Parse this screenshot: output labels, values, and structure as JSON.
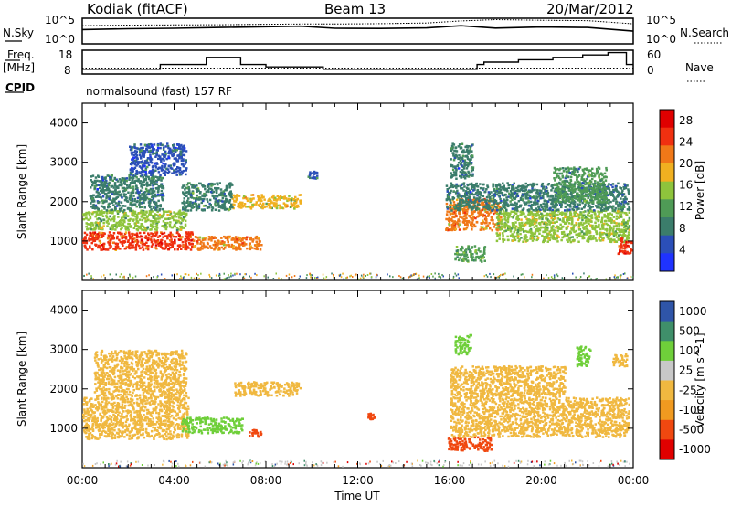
{
  "header": {
    "station": "Kodiak (fitACF)",
    "beam": "Beam 13",
    "date": "20/Mar/2012"
  },
  "top_panel": {
    "left_label": "N.Sky",
    "right_label": "N.Search",
    "left_ticks": [
      "10^5",
      "10^0"
    ],
    "right_ticks": [
      "10^5",
      "10^0"
    ]
  },
  "freq_panel": {
    "left_label_line1": "Freq.",
    "left_label_line2": "[MHz]",
    "right_label": "Nave",
    "left_ticks": [
      "18",
      "8"
    ],
    "right_ticks": [
      "60",
      "0"
    ]
  },
  "cpid": {
    "label": "CPID",
    "value": "normalsound (fast) 157 RF"
  },
  "colors": {
    "power": [
      "#1f33ff",
      "#2b4fb8",
      "#3b7d6b",
      "#4f9b56",
      "#8ec43c",
      "#f0b020",
      "#f07818",
      "#f03010",
      "#e00000"
    ],
    "velocity": [
      "#e00000",
      "#f04810",
      "#f09a20",
      "#f0b840",
      "#c8c8c8",
      "#6fcf3a",
      "#3f8f6a",
      "#2f55a8"
    ]
  },
  "chart_data": [
    {
      "type": "line",
      "title": "",
      "xlabel": "",
      "ylabel": "N.Sky",
      "x_range": [
        "00:00",
        "24:00"
      ],
      "ylim": [
        1,
        100000
      ],
      "yscale": "log",
      "series": [
        {
          "name": "N.Sky",
          "x": [
            0,
            2,
            4,
            6,
            8,
            9.5,
            11,
            13,
            15,
            16.5,
            18,
            20,
            22,
            24
          ],
          "values": [
            600,
            900,
            1100,
            1600,
            2200,
            2800,
            1100,
            1000,
            1300,
            3500,
            1200,
            1900,
            1600,
            300
          ]
        },
        {
          "name": "N.Search",
          "x": [
            0,
            2,
            4,
            6,
            8,
            9.5,
            11,
            13,
            15,
            16.5,
            18,
            20,
            22,
            24
          ],
          "values": [
            3500,
            4500,
            5000,
            5500,
            6500,
            7500,
            7500,
            9000,
            12000,
            30000,
            55000,
            40000,
            35000,
            8000
          ]
        }
      ]
    },
    {
      "type": "line",
      "title": "",
      "xlabel": "",
      "ylabel": "Freq. [MHz]",
      "x_range": [
        "00:00",
        "24:00"
      ],
      "ylim": [
        8,
        18
      ],
      "y2label": "Nave",
      "y2lim": [
        0,
        60
      ],
      "series": [
        {
          "name": "Freq.",
          "x": [
            0,
            3.1,
            3.4,
            5.2,
            5.4,
            6.6,
            6.9,
            7.5,
            8.0,
            10.5,
            16.4,
            17.2,
            17.5,
            18.6,
            19.0,
            20.2,
            20.5,
            21.4,
            21.8,
            22.5,
            22.9,
            23.5,
            23.7,
            24
          ],
          "values": [
            10,
            10,
            12,
            12,
            15,
            15,
            12,
            12,
            11,
            10,
            10,
            12,
            13,
            13,
            14,
            14,
            15,
            15,
            16,
            16,
            17,
            17,
            12,
            12
          ]
        },
        {
          "name": "Nave",
          "x": [
            0,
            24
          ],
          "values": [
            15,
            15
          ]
        }
      ]
    },
    {
      "type": "heatmap",
      "title": "",
      "xlabel": "",
      "ylabel": "Slant Range [km]",
      "x_range": [
        "00:00",
        "24:00"
      ],
      "ylim": [
        0,
        4500
      ],
      "x_ticks": [
        "00:00",
        "04:00",
        "08:00",
        "12:00",
        "16:00",
        "20:00",
        "00:00"
      ],
      "y_ticks": [
        "1000",
        "2000",
        "3000",
        "4000"
      ],
      "colorbar_label": "Power [dB]",
      "colorbar_ticks": [
        "4",
        "8",
        "12",
        "16",
        "20",
        "24",
        "28"
      ],
      "colorbar_range": [
        0,
        30
      ],
      "regions": [
        {
          "t0": 0.0,
          "t1": 4.8,
          "r0": 800,
          "r1": 1250,
          "value": 24
        },
        {
          "t0": 0.0,
          "t1": 4.5,
          "r0": 1300,
          "r1": 1800,
          "value": 14
        },
        {
          "t0": 0.3,
          "t1": 3.5,
          "r0": 1800,
          "r1": 2700,
          "value": 8
        },
        {
          "t0": 2.0,
          "t1": 4.5,
          "r0": 2700,
          "r1": 3500,
          "value": 6
        },
        {
          "t0": 4.8,
          "t1": 7.8,
          "r0": 800,
          "r1": 1150,
          "value": 21
        },
        {
          "t0": 6.5,
          "t1": 9.5,
          "r0": 1850,
          "r1": 2200,
          "value": 17
        },
        {
          "t0": 4.3,
          "t1": 6.5,
          "r0": 1800,
          "r1": 2500,
          "value": 9
        },
        {
          "t0": 9.8,
          "t1": 10.2,
          "r0": 2600,
          "r1": 2800,
          "value": 6
        },
        {
          "t0": 15.8,
          "t1": 18.2,
          "r0": 1300,
          "r1": 2100,
          "value": 20
        },
        {
          "t0": 18.0,
          "t1": 23.8,
          "r0": 1000,
          "r1": 1800,
          "value": 15
        },
        {
          "t0": 15.8,
          "t1": 23.8,
          "r0": 1800,
          "r1": 2500,
          "value": 8
        },
        {
          "t0": 16.2,
          "t1": 17.5,
          "r0": 500,
          "r1": 900,
          "value": 12
        },
        {
          "t0": 16.0,
          "t1": 17.0,
          "r0": 2600,
          "r1": 3500,
          "value": 8
        },
        {
          "t0": 20.5,
          "t1": 22.8,
          "r0": 2000,
          "r1": 2900,
          "value": 10
        },
        {
          "t0": 23.3,
          "t1": 23.9,
          "r0": 700,
          "r1": 1100,
          "value": 26
        }
      ]
    },
    {
      "type": "heatmap",
      "title": "",
      "xlabel": "Time UT",
      "ylabel": "Slant Range [km]",
      "x_range": [
        "00:00",
        "24:00"
      ],
      "ylim": [
        0,
        4500
      ],
      "x_ticks": [
        "00:00",
        "04:00",
        "08:00",
        "12:00",
        "16:00",
        "20:00",
        "00:00"
      ],
      "y_ticks": [
        "1000",
        "2000",
        "3000",
        "4000"
      ],
      "colorbar_label": "Velocity [m s^-1]",
      "colorbar_ticks": [
        "1000",
        "500",
        "100",
        "25",
        "-25",
        "-100",
        "-500",
        "-1000"
      ],
      "regions": [
        {
          "t0": 0.0,
          "t1": 4.6,
          "r0": 750,
          "r1": 1800,
          "value": 0
        },
        {
          "t0": 0.5,
          "t1": 4.5,
          "r0": 1800,
          "r1": 3000,
          "value": 0
        },
        {
          "t0": 4.3,
          "t1": 7.0,
          "r0": 900,
          "r1": 1300,
          "value": 150
        },
        {
          "t0": 6.6,
          "t1": 9.5,
          "r0": 1850,
          "r1": 2200,
          "value": 0
        },
        {
          "t0": 7.2,
          "t1": 7.8,
          "r0": 800,
          "r1": 1000,
          "value": -150
        },
        {
          "t0": 12.4,
          "t1": 12.7,
          "r0": 1250,
          "r1": 1400,
          "value": -150
        },
        {
          "t0": 15.9,
          "t1": 17.8,
          "r0": 450,
          "r1": 800,
          "value": -150
        },
        {
          "t0": 16.0,
          "t1": 23.8,
          "r0": 800,
          "r1": 1800,
          "value": 0
        },
        {
          "t0": 16.0,
          "t1": 21.0,
          "r0": 1800,
          "r1": 2600,
          "value": 0
        },
        {
          "t0": 16.2,
          "t1": 16.9,
          "r0": 2900,
          "r1": 3400,
          "value": 150
        },
        {
          "t0": 21.5,
          "t1": 22.1,
          "r0": 2600,
          "r1": 3100,
          "value": 300
        },
        {
          "t0": 23.0,
          "t1": 23.7,
          "r0": 2600,
          "r1": 2900,
          "value": 0
        }
      ]
    }
  ]
}
